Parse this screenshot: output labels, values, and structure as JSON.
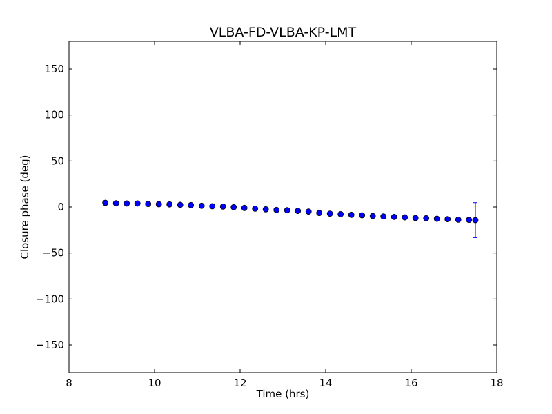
{
  "chart_data": {
    "type": "scatter",
    "title": "VLBA-FD-VLBA-KP-LMT",
    "xlabel": "Time (hrs)",
    "ylabel": "Closure phase (deg)",
    "xlim": [
      8,
      18
    ],
    "ylim": [
      -180,
      180
    ],
    "xticks": [
      8,
      10,
      12,
      14,
      16,
      18
    ],
    "yticks": [
      -150,
      -100,
      -50,
      0,
      50,
      100,
      150
    ],
    "ytick_labels": [
      "−150",
      "−100",
      "−50",
      "0",
      "50",
      "100",
      "150"
    ],
    "grid": false,
    "marker_color": "#0000ff",
    "series": [
      {
        "x": [
          8.85,
          9.1,
          9.35,
          9.6,
          9.85,
          10.1,
          10.35,
          10.6,
          10.85,
          11.1,
          11.35,
          11.6,
          11.85,
          12.1,
          12.35,
          12.6,
          12.85,
          13.1,
          13.35,
          13.6,
          13.85,
          14.1,
          14.35,
          14.6,
          14.85,
          15.1,
          15.35,
          15.6,
          15.85,
          16.1,
          16.35,
          16.6,
          16.85,
          17.1,
          17.35,
          17.5
        ],
        "y": [
          4.5,
          4.0,
          3.8,
          3.8,
          3.3,
          3.0,
          2.8,
          2.3,
          2.0,
          1.3,
          0.8,
          0.5,
          -0.2,
          -1.0,
          -1.8,
          -2.5,
          -3.2,
          -3.5,
          -4.2,
          -5.0,
          -6.5,
          -7.2,
          -7.8,
          -8.5,
          -9.0,
          -9.8,
          -10.2,
          -10.8,
          -11.3,
          -12.0,
          -12.2,
          -12.8,
          -13.2,
          -13.8,
          -14.0,
          -14.3
        ],
        "yerr": [
          0,
          0,
          0,
          0,
          0,
          0,
          0,
          0,
          0,
          0,
          0,
          0,
          0,
          0,
          0,
          0,
          0,
          0,
          0,
          0,
          0,
          0,
          0,
          0,
          0,
          0,
          0,
          0,
          0,
          0,
          0,
          0,
          0,
          0,
          0,
          19
        ]
      }
    ]
  }
}
